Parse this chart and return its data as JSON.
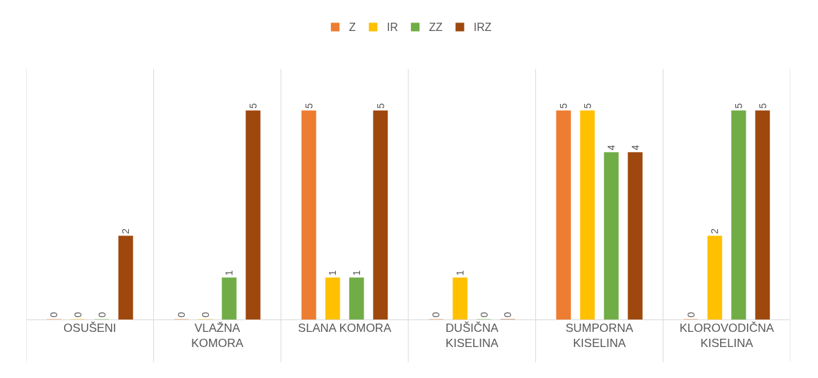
{
  "chart_data": {
    "type": "bar",
    "categories": [
      "OSUŠENI",
      "VLAŽNA KOMORA",
      "SLANA KOMORA",
      "DUŠIČNA KISELINA",
      "SUMPORNA KISELINA",
      "KLOROVODIČNA KISELINA"
    ],
    "series": [
      {
        "name": "Z",
        "color": "#ed7d31",
        "values": [
          0,
          0,
          5,
          0,
          5,
          0
        ]
      },
      {
        "name": "IR",
        "color": "#ffc000",
        "values": [
          0,
          0,
          1,
          1,
          5,
          2
        ]
      },
      {
        "name": "ZZ",
        "color": "#70ad47",
        "values": [
          0,
          1,
          1,
          0,
          4,
          5
        ]
      },
      {
        "name": "IRZ",
        "color": "#9e480e",
        "values": [
          2,
          5,
          5,
          0,
          4,
          5
        ]
      }
    ],
    "data_labels": true,
    "grid": "x",
    "legend": "top"
  }
}
